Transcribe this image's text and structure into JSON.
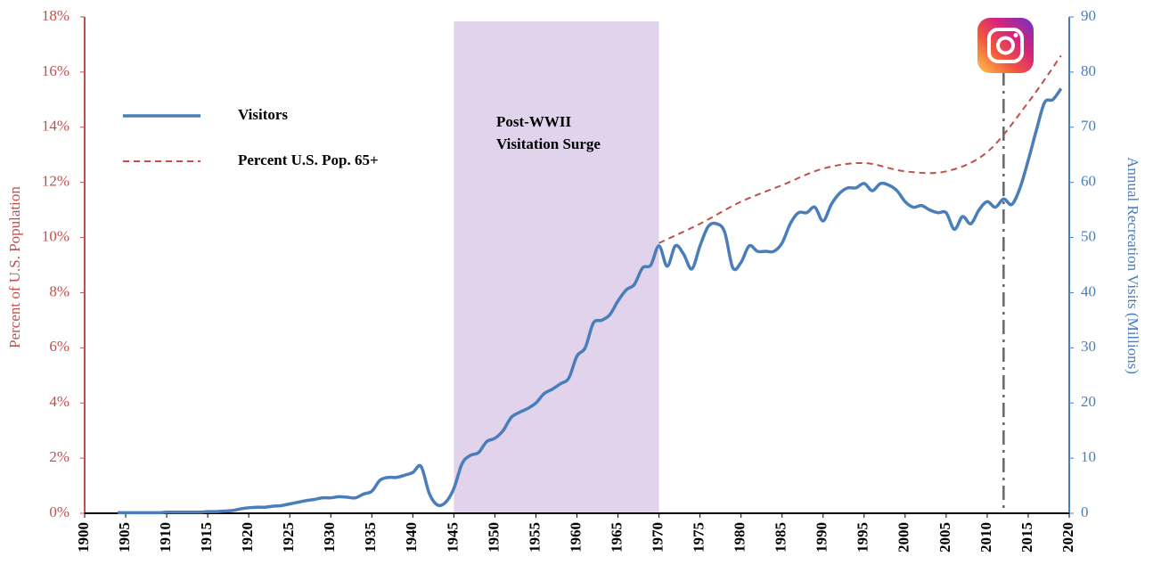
{
  "chart_data": {
    "type": "line",
    "x": [
      1904,
      1905,
      1906,
      1907,
      1908,
      1909,
      1910,
      1911,
      1912,
      1913,
      1914,
      1915,
      1916,
      1917,
      1918,
      1919,
      1920,
      1921,
      1922,
      1923,
      1924,
      1925,
      1926,
      1927,
      1928,
      1929,
      1930,
      1931,
      1932,
      1933,
      1934,
      1935,
      1936,
      1937,
      1938,
      1939,
      1940,
      1941,
      1942,
      1943,
      1944,
      1945,
      1946,
      1947,
      1948,
      1949,
      1950,
      1951,
      1952,
      1953,
      1954,
      1955,
      1956,
      1957,
      1958,
      1959,
      1960,
      1961,
      1962,
      1963,
      1964,
      1965,
      1966,
      1967,
      1968,
      1969,
      1970,
      1971,
      1972,
      1973,
      1974,
      1975,
      1976,
      1977,
      1978,
      1979,
      1980,
      1981,
      1982,
      1983,
      1984,
      1985,
      1986,
      1987,
      1988,
      1989,
      1990,
      1991,
      1992,
      1993,
      1994,
      1995,
      1996,
      1997,
      1998,
      1999,
      2000,
      2001,
      2002,
      2003,
      2004,
      2005,
      2006,
      2007,
      2008,
      2009,
      2010,
      2011,
      2012,
      2013,
      2014,
      2015,
      2016,
      2017,
      2018,
      2019
    ],
    "series": [
      {
        "name": "Visitors",
        "color": "#4a7ebb",
        "axis": "y2",
        "values": [
          0.1,
          0.1,
          0.1,
          0.1,
          0.1,
          0.1,
          0.2,
          0.2,
          0.2,
          0.2,
          0.2,
          0.3,
          0.3,
          0.4,
          0.5,
          0.8,
          1.0,
          1.1,
          1.1,
          1.3,
          1.4,
          1.7,
          2.0,
          2.3,
          2.5,
          2.8,
          2.8,
          3.0,
          2.9,
          2.8,
          3.5,
          4.0,
          6.0,
          6.5,
          6.5,
          6.9,
          7.4,
          8.5,
          3.6,
          1.5,
          2.0,
          4.5,
          9.0,
          10.5,
          11.0,
          13.0,
          13.6,
          15.0,
          17.4,
          18.3,
          19.0,
          20.0,
          21.7,
          22.5,
          23.5,
          24.5,
          28.5,
          30.0,
          34.5,
          35.0,
          36.0,
          38.5,
          40.5,
          41.5,
          44.5,
          45.0,
          48.5,
          44.8,
          48.5,
          47.0,
          44.3,
          48.5,
          52.0,
          52.5,
          51.0,
          44.5,
          45.5,
          48.5,
          47.5,
          47.5,
          47.5,
          49.0,
          52.5,
          54.5,
          54.5,
          55.5,
          53.0,
          56.0,
          58.0,
          59.0,
          59.0,
          59.8,
          58.5,
          59.8,
          59.5,
          58.5,
          56.5,
          55.5,
          55.8,
          55.0,
          54.5,
          54.5,
          51.5,
          53.8,
          52.5,
          55.0,
          56.5,
          55.5,
          57.0,
          56.0,
          59.0,
          64.0,
          69.5,
          74.5,
          75.0,
          77.0
        ]
      },
      {
        "name": "Percent U.S. Pop. 65+",
        "color": "#c0504d",
        "dashed": true,
        "x": [
          1970,
          1975,
          1980,
          1985,
          1990,
          1995,
          2000,
          2005,
          2010,
          2015,
          2019
        ],
        "values": [
          9.8,
          10.5,
          11.3,
          11.9,
          12.5,
          12.7,
          12.4,
          12.4,
          13.1,
          14.9,
          16.6
        ]
      }
    ],
    "xlim": [
      1900,
      2020
    ],
    "xticks": [
      1900,
      1905,
      1910,
      1915,
      1920,
      1925,
      1930,
      1935,
      1940,
      1945,
      1950,
      1955,
      1960,
      1965,
      1970,
      1975,
      1980,
      1985,
      1990,
      1995,
      2000,
      2005,
      2010,
      2015,
      2020
    ],
    "ylim": [
      0,
      18
    ],
    "yticks": [
      {
        "value": 0,
        "label": "0%"
      },
      {
        "value": 2,
        "label": "2%"
      },
      {
        "value": 4,
        "label": "4%"
      },
      {
        "value": 6,
        "label": "6%"
      },
      {
        "value": 8,
        "label": "8%"
      },
      {
        "value": 10,
        "label": "10%"
      },
      {
        "value": 12,
        "label": "12%"
      },
      {
        "value": 14,
        "label": "14%"
      },
      {
        "value": 16,
        "label": "16%"
      },
      {
        "value": 18,
        "label": "18%"
      }
    ],
    "y2lim": [
      0,
      90
    ],
    "y2ticks": [
      0,
      10,
      20,
      30,
      40,
      50,
      60,
      70,
      80,
      90
    ],
    "ylabel": "Percent of U.S. Population",
    "y2label": "Annual Recreation Visits (Millions)",
    "legend": "upper left",
    "highlight": {
      "from": 1945,
      "to": 1970,
      "color": "#e1d3ec",
      "label": [
        "Post-WWII",
        "Visitation Surge"
      ]
    },
    "marker_line": {
      "x": 2012
    }
  }
}
